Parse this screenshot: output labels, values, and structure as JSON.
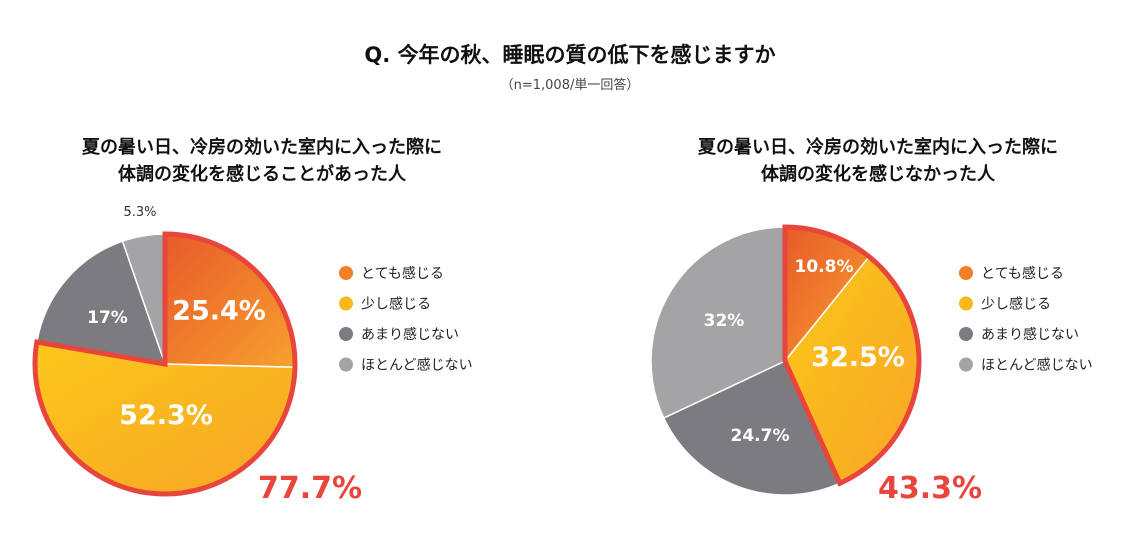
{
  "header": {
    "title": "Q. 今年の秋、睡眠の質の低下を感じますか",
    "subtitle": "（n=1,008/単一回答）"
  },
  "legend": [
    "とても感じる",
    "少し感じる",
    "あまり感じない",
    "ほとんど感じない"
  ],
  "colors": {
    "slices": [
      "#f0802a",
      "#fbb81e",
      "#7c7c80",
      "#a4a4a6"
    ],
    "highlight": "#e8453c",
    "total_text": "#e8453c"
  },
  "chart_data": [
    {
      "type": "pie",
      "title_lines": [
        "夏の暑い日、冷房の効いた室内に入った際に",
        "体調の変化を感じることがあった人"
      ],
      "categories": [
        "とても感じる",
        "少し感じる",
        "あまり感じない",
        "ほとんど感じない"
      ],
      "values": [
        25.4,
        52.3,
        17,
        5.3
      ],
      "labels": [
        "25.4%",
        "52.3%",
        "17%",
        "5.3%"
      ],
      "highlight_total": "77.7%",
      "legend_position": "right"
    },
    {
      "type": "pie",
      "title_lines": [
        "夏の暑い日、冷房の効いた室内に入った際に",
        "体調の変化を感じなかった人"
      ],
      "categories": [
        "とても感じる",
        "少し感じる",
        "あまり感じない",
        "ほとんど感じない"
      ],
      "values": [
        10.8,
        32.5,
        24.7,
        32
      ],
      "labels": [
        "10.8%",
        "32.5%",
        "24.7%",
        "32%"
      ],
      "highlight_total": "43.3%",
      "legend_position": "right"
    }
  ]
}
